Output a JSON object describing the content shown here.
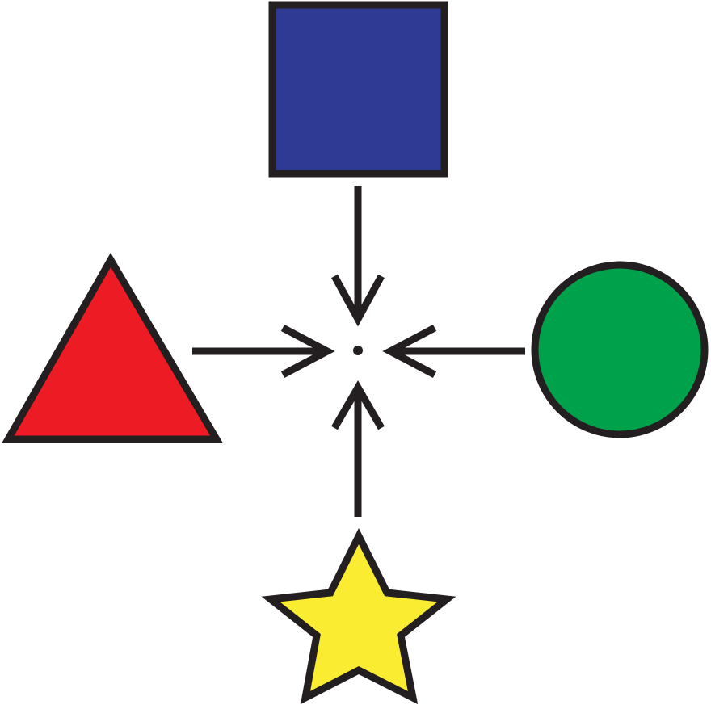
{
  "colors": {
    "background": "#ffffff",
    "outline": "#231f20",
    "square_fill": "#2e3a94",
    "triangle_fill": "#ed1c24",
    "circle_fill": "#00a14b",
    "star_fill": "#f9ec31"
  },
  "shapes": [
    {
      "name": "square",
      "icon": "square-icon",
      "position": "top"
    },
    {
      "name": "triangle",
      "icon": "triangle-icon",
      "position": "left"
    },
    {
      "name": "circle",
      "icon": "circle-icon",
      "position": "right"
    },
    {
      "name": "star",
      "icon": "star-icon",
      "position": "bottom"
    }
  ],
  "arrows": [
    {
      "from": "square",
      "to": "center",
      "direction": "down"
    },
    {
      "from": "triangle",
      "to": "center",
      "direction": "right"
    },
    {
      "from": "circle",
      "to": "center",
      "direction": "left"
    },
    {
      "from": "star",
      "to": "center",
      "direction": "up"
    }
  ],
  "center": {
    "name": "center-dot"
  }
}
